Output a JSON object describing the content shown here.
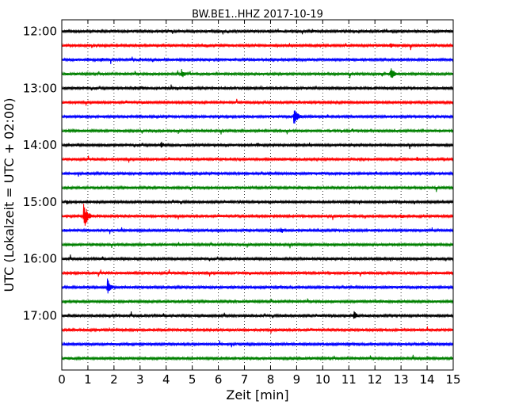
{
  "chart_data": {
    "type": "line",
    "title": "BW.BE1..HHZ 2017-10-19",
    "xlabel": "Zeit  [min]",
    "ylabel": "UTC (Lokalzeit = UTC + 02:00)",
    "xlim": [
      0,
      15
    ],
    "x_ticks": [
      "0",
      "1",
      "2",
      "3",
      "4",
      "5",
      "6",
      "7",
      "8",
      "9",
      "10",
      "11",
      "12",
      "13",
      "14",
      "15"
    ],
    "y_tick_labels": [
      "12:00",
      "13:00",
      "14:00",
      "15:00",
      "16:00",
      "17:00"
    ],
    "trace_interval_min": 15,
    "grid": "vertical dotted",
    "trace_colors": [
      "#000000",
      "#ff0000",
      "#0000ff",
      "#008000"
    ],
    "traces": [
      {
        "start": "12:00",
        "events": [
          {
            "t": 9.6,
            "amp": 0.25
          }
        ]
      },
      {
        "start": "12:15",
        "events": [
          {
            "t": 1.3,
            "amp": 0.25
          },
          {
            "t": 12.6,
            "amp": 0.4
          }
        ]
      },
      {
        "start": "12:30",
        "events": [
          {
            "t": 1.5,
            "amp": 0.3
          },
          {
            "t": 8.7,
            "amp": 0.15
          }
        ]
      },
      {
        "start": "12:45",
        "events": [
          {
            "t": 4.6,
            "amp": 0.6
          },
          {
            "t": 12.6,
            "amp": 0.85
          }
        ]
      },
      {
        "start": "13:00",
        "events": [
          {
            "t": 2.8,
            "amp": 0.25
          },
          {
            "t": 3.1,
            "amp": 0.25
          },
          {
            "t": 4.8,
            "amp": 0.2
          }
        ]
      },
      {
        "start": "13:15",
        "events": [
          {
            "t": 3.1,
            "amp": 0.2
          },
          {
            "t": 8.8,
            "amp": 0.2
          }
        ]
      },
      {
        "start": "13:30",
        "events": [
          {
            "t": 8.9,
            "amp": 1.1
          }
        ]
      },
      {
        "start": "13:45",
        "events": [
          {
            "t": 8.2,
            "amp": 0.15
          },
          {
            "t": 12.1,
            "amp": 0.2
          }
        ]
      },
      {
        "start": "14:00",
        "events": [
          {
            "t": 3.8,
            "amp": 0.4
          },
          {
            "t": 7.5,
            "amp": 0.35
          },
          {
            "t": 10.0,
            "amp": 0.2
          }
        ]
      },
      {
        "start": "14:15",
        "events": [
          {
            "t": 13.6,
            "amp": 0.3
          },
          {
            "t": 4.9,
            "amp": 0.15
          }
        ]
      },
      {
        "start": "14:30",
        "events": []
      },
      {
        "start": "14:45",
        "events": [
          {
            "t": 6.3,
            "amp": 0.2
          },
          {
            "t": 11.3,
            "amp": 0.15
          }
        ]
      },
      {
        "start": "15:00",
        "events": [
          {
            "t": 0.2,
            "amp": 0.25
          },
          {
            "t": 1.0,
            "amp": 0.2
          },
          {
            "t": 15.0,
            "amp": 0.2
          }
        ]
      },
      {
        "start": "15:15",
        "events": [
          {
            "t": 0.85,
            "amp": 1.5
          },
          {
            "t": 13.0,
            "amp": 0.3
          },
          {
            "t": 10.2,
            "amp": 0.2
          }
        ]
      },
      {
        "start": "15:30",
        "events": [
          {
            "t": 8.4,
            "amp": 0.35
          },
          {
            "t": 6.2,
            "amp": 0.2
          },
          {
            "t": 0.1,
            "amp": 0.2
          },
          {
            "t": 3.6,
            "amp": 0.15
          }
        ]
      },
      {
        "start": "15:45",
        "events": [
          {
            "t": 1.2,
            "amp": 0.2
          },
          {
            "t": 12.3,
            "amp": 0.15
          }
        ]
      },
      {
        "start": "16:00",
        "events": [
          {
            "t": 7.0,
            "amp": 0.15
          }
        ]
      },
      {
        "start": "16:15",
        "events": [
          {
            "t": 8.7,
            "amp": 0.2
          },
          {
            "t": 1.3,
            "amp": 0.15
          }
        ]
      },
      {
        "start": "16:30",
        "events": [
          {
            "t": 1.75,
            "amp": 0.9
          }
        ]
      },
      {
        "start": "16:45",
        "events": [
          {
            "t": 10.4,
            "amp": 0.2
          }
        ]
      },
      {
        "start": "17:00",
        "events": [
          {
            "t": 11.2,
            "amp": 0.55
          },
          {
            "t": 6.2,
            "amp": 0.15
          }
        ]
      },
      {
        "start": "17:15",
        "events": []
      },
      {
        "start": "17:30",
        "events": [
          {
            "t": 14.6,
            "amp": 0.2
          }
        ]
      },
      {
        "start": "17:45",
        "events": [
          {
            "t": 7.4,
            "amp": 0.2
          }
        ]
      }
    ]
  }
}
